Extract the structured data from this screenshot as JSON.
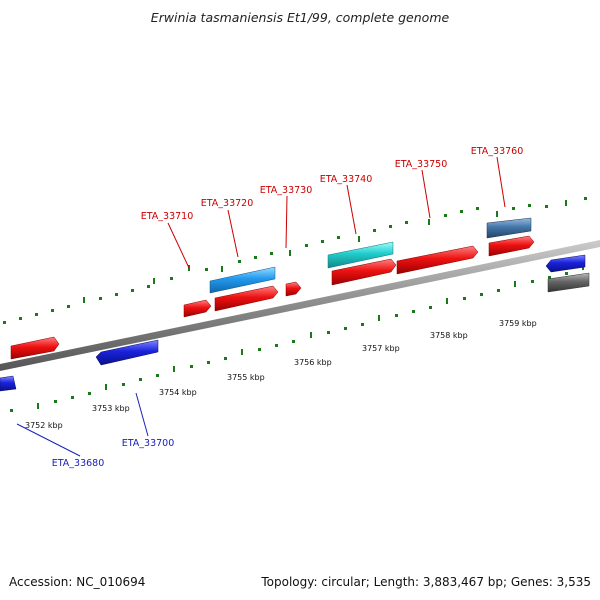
{
  "title": "Erwinia tasmaniensis Et1/99, complete genome",
  "footer": {
    "accession": "Accession: NC_010694",
    "summary": "Topology: circular; Length: 3,883,467 bp; Genes: 3,535"
  },
  "colors": {
    "forward_gene": "#ee1111",
    "reverse_gene": "#1a22dd",
    "feature_cyan": "#22cccc",
    "feature_skyblue": "#2299ee",
    "feature_steel": "#4477aa",
    "feature_gray": "#666666",
    "backbone": "#8a8a8a",
    "tick": "#1a7a1a",
    "label_forward": "#cc0000",
    "label_reverse": "#1a22bb"
  },
  "scale": {
    "unit": "kbp",
    "tick_labels": [
      {
        "kbp": 3752,
        "label": "3752 kbp"
      },
      {
        "kbp": 3753,
        "label": "3753 kbp"
      },
      {
        "kbp": 3754,
        "label": "3754 kbp"
      },
      {
        "kbp": 3755,
        "label": "3755 kbp"
      },
      {
        "kbp": 3756,
        "label": "3756 kbp"
      },
      {
        "kbp": 3757,
        "label": "3757 kbp"
      },
      {
        "kbp": 3758,
        "label": "3758 kbp"
      },
      {
        "kbp": 3759,
        "label": "3759 kbp"
      }
    ]
  },
  "gene_labels": [
    {
      "name": "ETA_33680",
      "strand": "reverse"
    },
    {
      "name": "ETA_33700",
      "strand": "reverse"
    },
    {
      "name": "ETA_33710",
      "strand": "forward"
    },
    {
      "name": "ETA_33720",
      "strand": "forward"
    },
    {
      "name": "ETA_33730",
      "strand": "forward"
    },
    {
      "name": "ETA_33740",
      "strand": "forward"
    },
    {
      "name": "ETA_33750",
      "strand": "forward"
    },
    {
      "name": "ETA_33760",
      "strand": "forward"
    }
  ]
}
